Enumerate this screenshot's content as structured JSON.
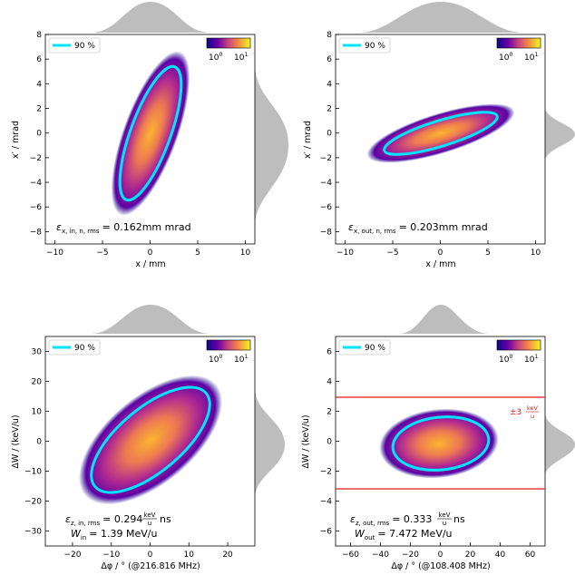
{
  "chart_data": [
    {
      "type": "scatter",
      "panel": "top-left",
      "xlabel": "x / mm",
      "ylabel": "x' / mrad",
      "xlim": [
        -11,
        11
      ],
      "ylim": [
        -9,
        8
      ],
      "xticks": [
        -10,
        -5,
        0,
        5,
        10
      ],
      "yticks": [
        -8,
        -6,
        -4,
        -2,
        0,
        2,
        4,
        6,
        8
      ],
      "legend": {
        "label": "90 %",
        "placement": "top-left",
        "color": "#00e5ff"
      },
      "colorbar": {
        "ticks": [
          "10^0",
          "10^1"
        ],
        "placement": "top-right"
      },
      "ellipse": {
        "cx": 0,
        "cy": 0,
        "semi_major_axis_direction": "steep negative slope",
        "x_extent": [
          -4,
          4
        ],
        "y_extent": [
          -5.6,
          5.6
        ]
      },
      "annotation": {
        "symbol": "ε",
        "subscript": "x, in, n, rms",
        "value": "= 0.162mm mrad"
      },
      "marginal_x": "gaussian histogram (grey)",
      "marginal_y": "gaussian histogram (grey)"
    },
    {
      "type": "scatter",
      "panel": "top-right",
      "xlabel": "x / mm",
      "ylabel": "x' / mrad",
      "xlim": [
        -11,
        11
      ],
      "ylim": [
        -9,
        8
      ],
      "xticks": [
        -10,
        -5,
        0,
        5,
        10
      ],
      "yticks": [
        -8,
        -6,
        -4,
        -2,
        0,
        2,
        4,
        6,
        8
      ],
      "legend": {
        "label": "90 %",
        "placement": "top-left",
        "color": "#00e5ff"
      },
      "colorbar": {
        "ticks": [
          "10^0",
          "10^1"
        ],
        "placement": "top-right"
      },
      "ellipse": {
        "cx": 0,
        "cy": 0,
        "x_extent": [
          -5.5,
          5.5
        ],
        "y_extent": [
          -1.6,
          1.6
        ]
      },
      "annotation": {
        "symbol": "ε",
        "subscript": "x, out, n, rms",
        "value": "= 0.203mm mrad"
      },
      "marginal_x": "gaussian histogram (grey)",
      "marginal_y": "gaussian histogram (grey)"
    },
    {
      "type": "scatter",
      "panel": "bottom-left",
      "xlabel": "Δφ / ° (@216.816 MHz)",
      "ylabel": "ΔW / (keV/u)",
      "xlim": [
        -27,
        27
      ],
      "ylim": [
        -35,
        35
      ],
      "xticks": [
        -20,
        -10,
        0,
        10,
        20
      ],
      "yticks": [
        -30,
        -20,
        -10,
        0,
        10,
        20,
        30
      ],
      "legend": {
        "label": "90 %",
        "placement": "top-left",
        "color": "#00e5ff"
      },
      "colorbar": {
        "ticks": [
          "10^0",
          "10^1"
        ],
        "placement": "top-right"
      },
      "ellipse": {
        "cx": 0,
        "cy": 0,
        "x_extent": [
          -11,
          11
        ],
        "y_extent": [
          -15.5,
          15.5
        ]
      },
      "annotations": [
        {
          "symbol": "ε",
          "subscript": "z, in, rms",
          "value": "= 0.294",
          "unit": "keV/u ns"
        },
        {
          "symbol": "W",
          "subscript": "in",
          "value": "= 1.39 MeV/u"
        }
      ],
      "marginal_x": "gaussian histogram (grey)",
      "marginal_y": "gaussian histogram (grey)"
    },
    {
      "type": "scatter",
      "panel": "bottom-right",
      "xlabel": "Δφ / ° (@108.408 MHz)",
      "ylabel": "ΔW / (keV/u)",
      "xlim": [
        -70,
        70
      ],
      "ylim": [
        -7,
        7
      ],
      "xticks": [
        -60,
        -40,
        -20,
        0,
        20,
        40,
        60
      ],
      "yticks": [
        -6,
        -4,
        -2,
        0,
        2,
        4,
        6
      ],
      "legend": {
        "label": "90 %",
        "placement": "top-left",
        "color": "#00e5ff"
      },
      "colorbar": {
        "ticks": [
          "10^0",
          "10^1"
        ],
        "placement": "top-right"
      },
      "ellipse": {
        "cx": 0,
        "cy": 0,
        "x_extent": [
          -32,
          33
        ],
        "y_extent": [
          -1.9,
          1.3
        ]
      },
      "hlines": [
        {
          "y": 3,
          "color": "#e41a1c"
        },
        {
          "y": -3,
          "color": "#e41a1c"
        }
      ],
      "red_annotation": {
        "text": "±3",
        "unit": "keV/u"
      },
      "annotations": [
        {
          "symbol": "ε",
          "subscript": "z, out, rms",
          "value": "= 0.333",
          "unit": "keV/u ns"
        },
        {
          "symbol": "W",
          "subscript": "out",
          "value": "= 7.472 MeV/u"
        }
      ],
      "marginal_x": "gaussian histogram (grey)",
      "marginal_y": "gaussian histogram (grey)"
    }
  ],
  "labels": {
    "tl_xlabel": "x / mm",
    "tl_ylabel": "x′ / mrad",
    "tr_xlabel": "x / mm",
    "tr_ylabel": "x′ / mrad",
    "bl_xlabel": "Δφ / ° (@216.816 MHz)",
    "bl_ylabel": "ΔW / (keV/u)",
    "br_xlabel": "Δφ / ° (@108.408 MHz)",
    "br_ylabel": "ΔW / (keV/u)",
    "legend": "90 %",
    "cbar_lo": "10",
    "cbar_hi": "10",
    "cbar_lo_exp": "0",
    "cbar_hi_exp": "1",
    "tl_annot_sym": "ε",
    "tl_annot_sub": "x, in, n, rms",
    "tl_annot_val": "= 0.162mm mrad",
    "tr_annot_sym": "ε",
    "tr_annot_sub": "x, out, n, rms",
    "tr_annot_val": "= 0.203mm mrad",
    "bl_annot1_sym": "ε",
    "bl_annot1_sub": "z, in, rms",
    "bl_annot1_val": "= 0.294",
    "bl_annot1_unit_num": "keV",
    "bl_annot1_unit_den": "u",
    "bl_annot1_unit_tail": "ns",
    "bl_annot2_sym": "W",
    "bl_annot2_sub": "in",
    "bl_annot2_val": "= 1.39 MeV/u",
    "br_annot1_sym": "ε",
    "br_annot1_sub": "z, out, rms",
    "br_annot1_val": "= 0.333",
    "br_annot1_unit_num": "keV",
    "br_annot1_unit_den": "u",
    "br_annot1_unit_tail": "ns",
    "br_annot2_sym": "W",
    "br_annot2_sub": "out",
    "br_annot2_val": "= 7.472 MeV/u",
    "br_red_text": "±3",
    "br_red_num": "keV",
    "br_red_den": "u"
  },
  "colors": {
    "ellipse": "#00e5ff",
    "hline": "#e41a1c",
    "histogram": "#bdbdbd",
    "cmap_low": "#0d0887",
    "cmap_mid": "#cc4778",
    "cmap_high": "#f0f921"
  }
}
